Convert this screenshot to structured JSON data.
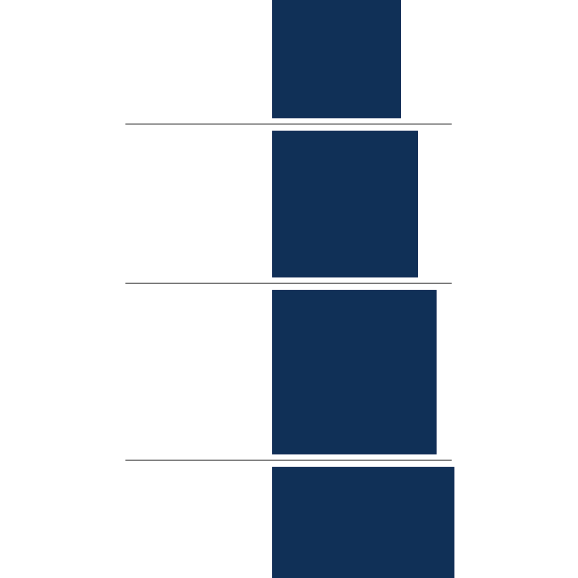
{
  "colors": {
    "background": "#ffffff",
    "block_fill": "#103057",
    "divider": "#2b2b2b"
  },
  "blocks": [
    {
      "id": "block-1"
    },
    {
      "id": "block-2"
    },
    {
      "id": "block-3"
    },
    {
      "id": "block-4"
    }
  ]
}
